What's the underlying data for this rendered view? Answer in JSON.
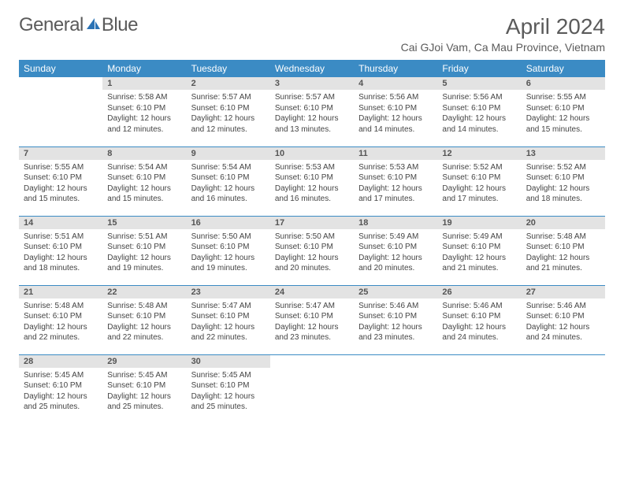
{
  "logo": {
    "text1": "General",
    "text2": "Blue"
  },
  "title": "April 2024",
  "location": "Cai GJoi Vam, Ca Mau Province, Vietnam",
  "colors": {
    "header_bg": "#3b8bc4",
    "header_text": "#ffffff",
    "daynum_bg": "#e3e3e3",
    "logo_accent": "#2a72b5",
    "border": "#3b8bc4"
  },
  "dayNames": [
    "Sunday",
    "Monday",
    "Tuesday",
    "Wednesday",
    "Thursday",
    "Friday",
    "Saturday"
  ],
  "weeks": [
    [
      {
        "n": "",
        "sr": "",
        "ss": "",
        "dl": ""
      },
      {
        "n": "1",
        "sr": "5:58 AM",
        "ss": "6:10 PM",
        "dl": "12 hours and 12 minutes."
      },
      {
        "n": "2",
        "sr": "5:57 AM",
        "ss": "6:10 PM",
        "dl": "12 hours and 12 minutes."
      },
      {
        "n": "3",
        "sr": "5:57 AM",
        "ss": "6:10 PM",
        "dl": "12 hours and 13 minutes."
      },
      {
        "n": "4",
        "sr": "5:56 AM",
        "ss": "6:10 PM",
        "dl": "12 hours and 14 minutes."
      },
      {
        "n": "5",
        "sr": "5:56 AM",
        "ss": "6:10 PM",
        "dl": "12 hours and 14 minutes."
      },
      {
        "n": "6",
        "sr": "5:55 AM",
        "ss": "6:10 PM",
        "dl": "12 hours and 15 minutes."
      }
    ],
    [
      {
        "n": "7",
        "sr": "5:55 AM",
        "ss": "6:10 PM",
        "dl": "12 hours and 15 minutes."
      },
      {
        "n": "8",
        "sr": "5:54 AM",
        "ss": "6:10 PM",
        "dl": "12 hours and 15 minutes."
      },
      {
        "n": "9",
        "sr": "5:54 AM",
        "ss": "6:10 PM",
        "dl": "12 hours and 16 minutes."
      },
      {
        "n": "10",
        "sr": "5:53 AM",
        "ss": "6:10 PM",
        "dl": "12 hours and 16 minutes."
      },
      {
        "n": "11",
        "sr": "5:53 AM",
        "ss": "6:10 PM",
        "dl": "12 hours and 17 minutes."
      },
      {
        "n": "12",
        "sr": "5:52 AM",
        "ss": "6:10 PM",
        "dl": "12 hours and 17 minutes."
      },
      {
        "n": "13",
        "sr": "5:52 AM",
        "ss": "6:10 PM",
        "dl": "12 hours and 18 minutes."
      }
    ],
    [
      {
        "n": "14",
        "sr": "5:51 AM",
        "ss": "6:10 PM",
        "dl": "12 hours and 18 minutes."
      },
      {
        "n": "15",
        "sr": "5:51 AM",
        "ss": "6:10 PM",
        "dl": "12 hours and 19 minutes."
      },
      {
        "n": "16",
        "sr": "5:50 AM",
        "ss": "6:10 PM",
        "dl": "12 hours and 19 minutes."
      },
      {
        "n": "17",
        "sr": "5:50 AM",
        "ss": "6:10 PM",
        "dl": "12 hours and 20 minutes."
      },
      {
        "n": "18",
        "sr": "5:49 AM",
        "ss": "6:10 PM",
        "dl": "12 hours and 20 minutes."
      },
      {
        "n": "19",
        "sr": "5:49 AM",
        "ss": "6:10 PM",
        "dl": "12 hours and 21 minutes."
      },
      {
        "n": "20",
        "sr": "5:48 AM",
        "ss": "6:10 PM",
        "dl": "12 hours and 21 minutes."
      }
    ],
    [
      {
        "n": "21",
        "sr": "5:48 AM",
        "ss": "6:10 PM",
        "dl": "12 hours and 22 minutes."
      },
      {
        "n": "22",
        "sr": "5:48 AM",
        "ss": "6:10 PM",
        "dl": "12 hours and 22 minutes."
      },
      {
        "n": "23",
        "sr": "5:47 AM",
        "ss": "6:10 PM",
        "dl": "12 hours and 22 minutes."
      },
      {
        "n": "24",
        "sr": "5:47 AM",
        "ss": "6:10 PM",
        "dl": "12 hours and 23 minutes."
      },
      {
        "n": "25",
        "sr": "5:46 AM",
        "ss": "6:10 PM",
        "dl": "12 hours and 23 minutes."
      },
      {
        "n": "26",
        "sr": "5:46 AM",
        "ss": "6:10 PM",
        "dl": "12 hours and 24 minutes."
      },
      {
        "n": "27",
        "sr": "5:46 AM",
        "ss": "6:10 PM",
        "dl": "12 hours and 24 minutes."
      }
    ],
    [
      {
        "n": "28",
        "sr": "5:45 AM",
        "ss": "6:10 PM",
        "dl": "12 hours and 25 minutes."
      },
      {
        "n": "29",
        "sr": "5:45 AM",
        "ss": "6:10 PM",
        "dl": "12 hours and 25 minutes."
      },
      {
        "n": "30",
        "sr": "5:45 AM",
        "ss": "6:10 PM",
        "dl": "12 hours and 25 minutes."
      },
      {
        "n": "",
        "sr": "",
        "ss": "",
        "dl": ""
      },
      {
        "n": "",
        "sr": "",
        "ss": "",
        "dl": ""
      },
      {
        "n": "",
        "sr": "",
        "ss": "",
        "dl": ""
      },
      {
        "n": "",
        "sr": "",
        "ss": "",
        "dl": ""
      }
    ]
  ],
  "labels": {
    "sunrise": "Sunrise: ",
    "sunset": "Sunset: ",
    "daylight": "Daylight: "
  }
}
